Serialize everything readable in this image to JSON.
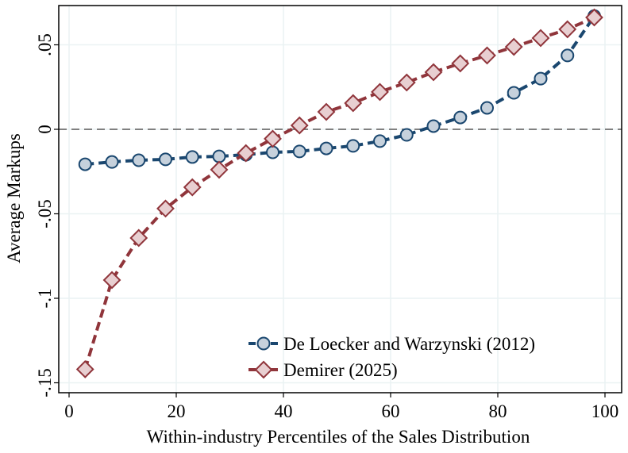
{
  "chart_data": {
    "type": "line",
    "title": "",
    "xlabel": "Within-industry Percentiles of the Sales Distribution",
    "ylabel": "Average Markups",
    "xlim": [
      -1.5,
      102
    ],
    "ylim": [
      -0.158,
      0.073
    ],
    "xticks": [
      0,
      20,
      40,
      60,
      80,
      100
    ],
    "xtick_labels": [
      "0",
      "20",
      "40",
      "60",
      "80",
      "100"
    ],
    "yticks": [
      0.05,
      0,
      -0.05,
      -0.1,
      -0.15
    ],
    "ytick_labels": [
      ".05",
      "0",
      "-.05",
      "-.1",
      "-.15"
    ],
    "grid": true,
    "reference_line": {
      "y": 0,
      "style": "dashed",
      "color": "#808080"
    },
    "legend_placement": "bottom-right",
    "x": [
      3,
      8,
      13,
      18,
      23,
      28,
      33,
      38,
      43,
      48,
      53,
      58,
      63,
      68,
      73,
      78,
      83,
      88,
      93,
      98
    ],
    "series": [
      {
        "name": "De Loecker and Warzynski (2012)",
        "color": "#1a476f",
        "fill": "#c6d1dc",
        "marker": "circle",
        "values": [
          -0.0207,
          -0.0193,
          -0.0183,
          -0.0178,
          -0.0164,
          -0.016,
          -0.015,
          -0.0136,
          -0.0131,
          -0.0113,
          -0.0098,
          -0.007,
          -0.0033,
          0.0019,
          0.007,
          0.0127,
          0.0216,
          0.03,
          0.0437,
          0.067
        ]
      },
      {
        "name": "Demirer (2025)",
        "color": "#90353b",
        "fill": "#e8cfd1",
        "marker": "diamond",
        "values": [
          -0.142,
          -0.0892,
          -0.0643,
          -0.0469,
          -0.0343,
          -0.0239,
          -0.0141,
          -0.0056,
          0.0023,
          0.0103,
          0.0155,
          0.0221,
          0.0277,
          0.0338,
          0.039,
          0.0437,
          0.0488,
          0.054,
          0.0592,
          0.0662
        ]
      }
    ]
  }
}
